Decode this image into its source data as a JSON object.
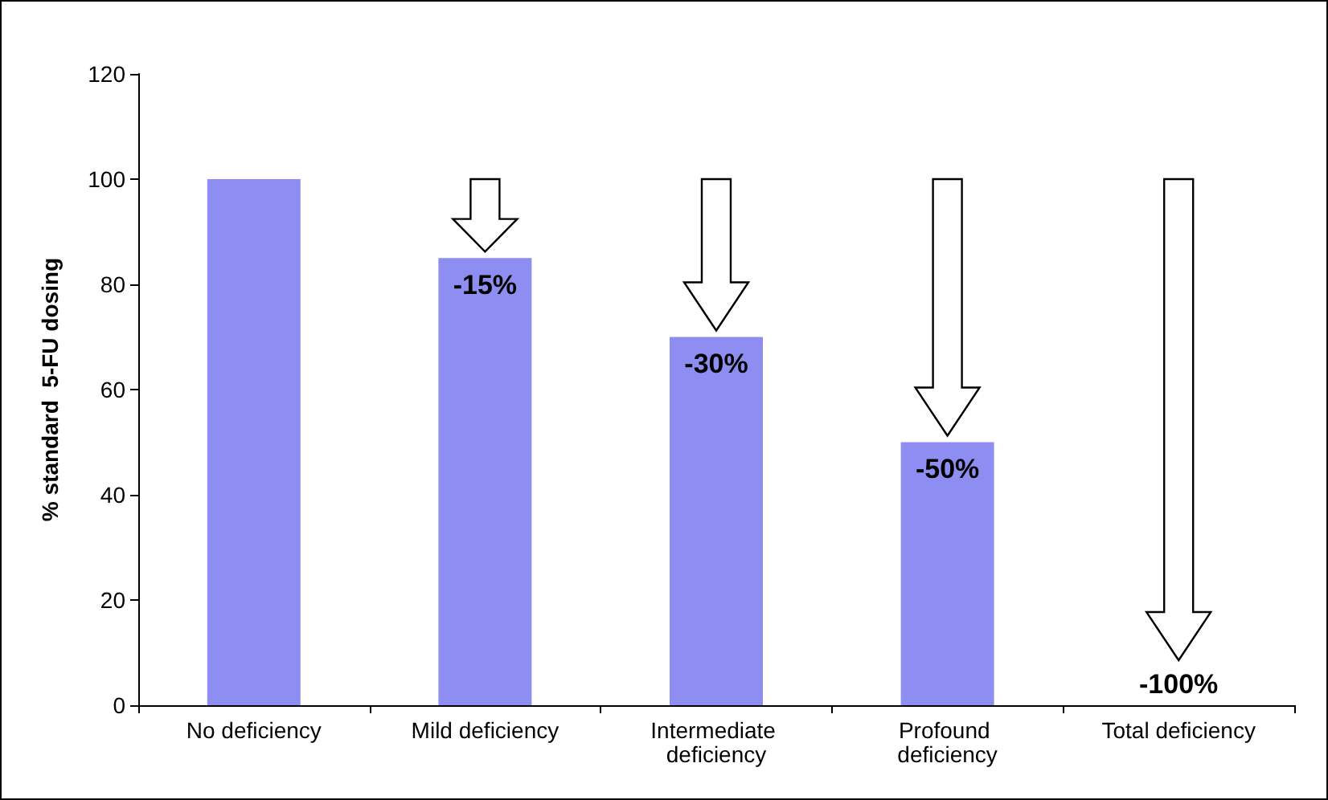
{
  "chart_data": {
    "type": "bar",
    "ylabel": "% standard  5-FU dosing",
    "categories": [
      "No deficiency",
      "Mild deficiency",
      "Intermediate deficiency",
      "Profound deficiency",
      "Total deficiency"
    ],
    "values": [
      100,
      85,
      70,
      50,
      0
    ],
    "color": "#8e8ef2",
    "ylim": [
      0,
      120
    ],
    "yticks": [
      0,
      20,
      40,
      60,
      80,
      100,
      120
    ],
    "grid": false,
    "annotations": [
      {
        "text": "-15%",
        "x": "Mild deficiency",
        "y": 85
      },
      {
        "text": "-30%",
        "x": "Intermediate deficiency",
        "y": 70
      },
      {
        "text": "-50%",
        "x": "Profound deficiency",
        "y": 50
      },
      {
        "text": "-100%",
        "x": "Total deficiency",
        "y": 0
      }
    ]
  }
}
